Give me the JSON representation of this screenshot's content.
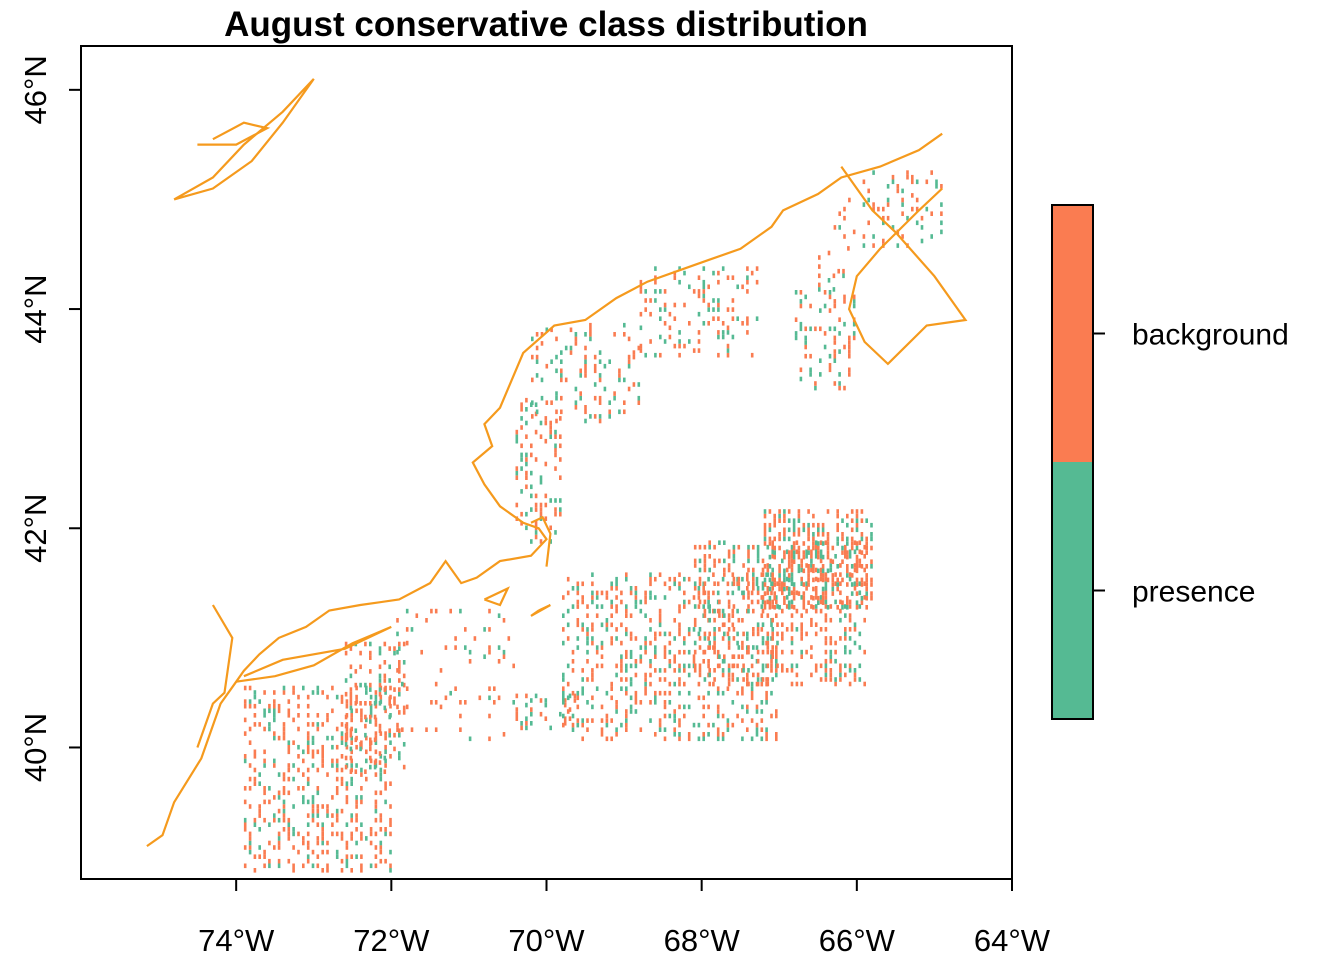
{
  "chart_data": {
    "type": "heatmap",
    "title": "August conservative class distribution",
    "xlabel": "",
    "ylabel": "",
    "xlim": [
      -76.0,
      -64.0
    ],
    "ylim": [
      38.8,
      46.4
    ],
    "x_ticks": [
      {
        "value": -74,
        "label": "74°W"
      },
      {
        "value": -72,
        "label": "72°W"
      },
      {
        "value": -70,
        "label": "70°W"
      },
      {
        "value": -68,
        "label": "68°W"
      },
      {
        "value": -66,
        "label": "66°W"
      },
      {
        "value": -64,
        "label": "64°W"
      }
    ],
    "y_ticks": [
      {
        "value": 40,
        "label": "40°N"
      },
      {
        "value": 42,
        "label": "42°N"
      },
      {
        "value": 44,
        "label": "44°N"
      },
      {
        "value": 46,
        "label": "46°N"
      }
    ],
    "classes": [
      {
        "name": "presence",
        "color": "#55BA93"
      },
      {
        "name": "background",
        "color": "#FA7C51"
      }
    ],
    "coastline_color": "#F59A1D",
    "cell_size_deg": 0.0416,
    "cell_clusters": [
      {
        "lon": [
          -73.9,
          -72.0
        ],
        "lat": [
          38.9,
          40.6
        ],
        "density": 0.34,
        "presence_share": 0.3
      },
      {
        "lon": [
          -72.6,
          -71.8
        ],
        "lat": [
          39.8,
          41.0
        ],
        "density": 0.32,
        "presence_share": 0.3
      },
      {
        "lon": [
          -72.0,
          -70.4
        ],
        "lat": [
          40.1,
          41.3
        ],
        "density": 0.1,
        "presence_share": 0.3
      },
      {
        "lon": [
          -70.4,
          -69.6
        ],
        "lat": [
          40.2,
          40.5
        ],
        "density": 0.2,
        "presence_share": 0.35
      },
      {
        "lon": [
          -69.8,
          -67.0
        ],
        "lat": [
          40.1,
          41.6
        ],
        "density": 0.3,
        "presence_share": 0.4
      },
      {
        "lon": [
          -68.1,
          -65.9
        ],
        "lat": [
          40.6,
          41.9
        ],
        "density": 0.35,
        "presence_share": 0.3
      },
      {
        "lon": [
          -67.2,
          -65.8
        ],
        "lat": [
          41.3,
          42.2
        ],
        "density": 0.55,
        "presence_share": 0.3
      },
      {
        "lon": [
          -70.4,
          -69.8
        ],
        "lat": [
          41.9,
          43.2
        ],
        "density": 0.3,
        "presence_share": 0.4
      },
      {
        "lon": [
          -70.2,
          -68.8
        ],
        "lat": [
          43.0,
          43.9
        ],
        "density": 0.2,
        "presence_share": 0.4
      },
      {
        "lon": [
          -68.8,
          -67.3
        ],
        "lat": [
          43.6,
          44.4
        ],
        "density": 0.2,
        "presence_share": 0.4
      },
      {
        "lon": [
          -66.8,
          -66.0
        ],
        "lat": [
          43.3,
          44.2
        ],
        "density": 0.25,
        "presence_share": 0.4
      },
      {
        "lon": [
          -66.3,
          -64.9
        ],
        "lat": [
          44.6,
          45.3
        ],
        "density": 0.18,
        "presence_share": 0.4
      },
      {
        "lon": [
          -66.5,
          -66.1
        ],
        "lat": [
          44.2,
          44.6
        ],
        "density": 0.2,
        "presence_share": 0.4
      }
    ],
    "grid": false,
    "legend_position": "right"
  }
}
